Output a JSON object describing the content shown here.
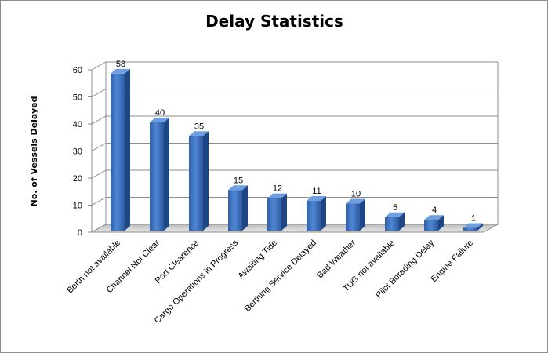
{
  "chart_data": {
    "type": "bar",
    "title": "Delay Statistics",
    "xlabel": "",
    "ylabel": "No. of Vessels Delayed",
    "ylim": [
      0,
      60
    ],
    "yticks": [
      0,
      10,
      20,
      30,
      40,
      50,
      60
    ],
    "grid": true,
    "legend": "none",
    "bar_color": "#3a74c4",
    "categories": [
      "Berth not available",
      "Channel Not Clear",
      "Port Clearence",
      "Cargo Operations in Progress",
      "Awaiting Tide",
      "Berthing Service Delayed",
      "Bad Weather",
      "TUG not available",
      "Pilot Borading Delay",
      "Engine Failure"
    ],
    "values": [
      58,
      40,
      35,
      15,
      12,
      11,
      10,
      5,
      4,
      1
    ]
  }
}
